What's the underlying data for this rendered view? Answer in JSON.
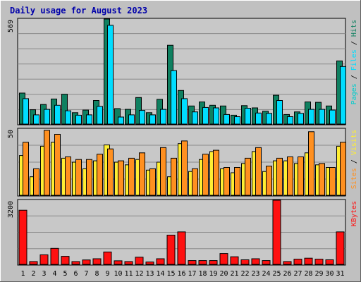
{
  "colors": {
    "hits": "#0f8060",
    "files": "#00ddff",
    "sites": "#ff9020",
    "visits": "#ffee33",
    "kbytes": "#ff1010",
    "pages": "#00cccc",
    "weekend": "#008040",
    "title": "#0000aa",
    "background": "#c0c0c0",
    "panel": "#c8c8c8",
    "grid": "#8a8a8a"
  },
  "chart_data": {
    "type": "bar",
    "title": "Daily usage for August 2023",
    "x": [
      "1",
      "2",
      "3",
      "4",
      "5",
      "6",
      "7",
      "8",
      "9",
      "10",
      "11",
      "12",
      "13",
      "14",
      "15",
      "16",
      "17",
      "18",
      "19",
      "20",
      "21",
      "22",
      "23",
      "24",
      "25",
      "26",
      "27",
      "28",
      "29",
      "30",
      "31"
    ],
    "weekend_days": [
      5,
      6,
      12,
      13,
      19,
      20,
      26,
      27
    ],
    "panels": [
      {
        "id": "hits_files",
        "ymax": 569,
        "ymax_label": "569",
        "side_labels": [
          "Hits",
          "Files",
          "Pages"
        ],
        "series": [
          {
            "name": "Hits",
            "values": [
              168,
              78,
              106,
              136,
              162,
              62,
              76,
              128,
              569,
              84,
              80,
              144,
              62,
              134,
              427,
              182,
              98,
              120,
              102,
              98,
              48,
              100,
              88,
              70,
              156,
              52,
              66,
              120,
              118,
              98,
              342
            ]
          },
          {
            "name": "Files",
            "values": [
              138,
              50,
              80,
              102,
              72,
              48,
              50,
              96,
              535,
              38,
              50,
              74,
              50,
              80,
              290,
              138,
              66,
              90,
              88,
              52,
              40,
              86,
              60,
              58,
              128,
              40,
              58,
              80,
              80,
              76,
              312
            ]
          },
          {
            "name": "Pages",
            "values": [
              0,
              0,
              0,
              0,
              0,
              0,
              0,
              0,
              0,
              0,
              0,
              0,
              0,
              0,
              0,
              0,
              0,
              0,
              0,
              0,
              0,
              0,
              0,
              0,
              0,
              0,
              0,
              0,
              0,
              0,
              0
            ]
          }
        ]
      },
      {
        "id": "visits_sites",
        "ymax": 50,
        "ymax_label": "50",
        "side_labels": [
          "Visits",
          "Sites"
        ],
        "series": [
          {
            "name": "Visits",
            "values": [
              30,
              14,
              37,
              40,
              28,
              25,
              20,
              26,
              38,
              25,
              23,
              27,
              19,
              25,
              14,
              39,
              18,
              27,
              33,
              20,
              17,
              24,
              33,
              18,
              26,
              26,
              24,
              32,
              23,
              21,
              37
            ]
          },
          {
            "name": "Sites",
            "values": [
              40,
              20,
              49,
              46,
              29,
              27,
              27,
              31,
              35,
              26,
              28,
              32,
              20,
              36,
              28,
              41,
              20,
              31,
              34,
              21,
              21,
              28,
              36,
              22,
              28,
              29,
              29,
              48,
              24,
              21,
              40
            ]
          }
        ]
      },
      {
        "id": "kbytes",
        "ymax": 3200,
        "ymax_label": "3200",
        "side_labels": [
          "KBytes"
        ],
        "series": [
          {
            "name": "KBytes",
            "values": [
              2700,
              140,
              480,
              800,
              400,
              140,
              220,
              280,
              620,
              180,
              140,
              360,
              120,
              280,
              1460,
              1620,
              190,
              190,
              190,
              540,
              380,
              230,
              280,
              190,
              3200,
              140,
              260,
              310,
              260,
              230,
              1620
            ]
          }
        ]
      }
    ]
  }
}
